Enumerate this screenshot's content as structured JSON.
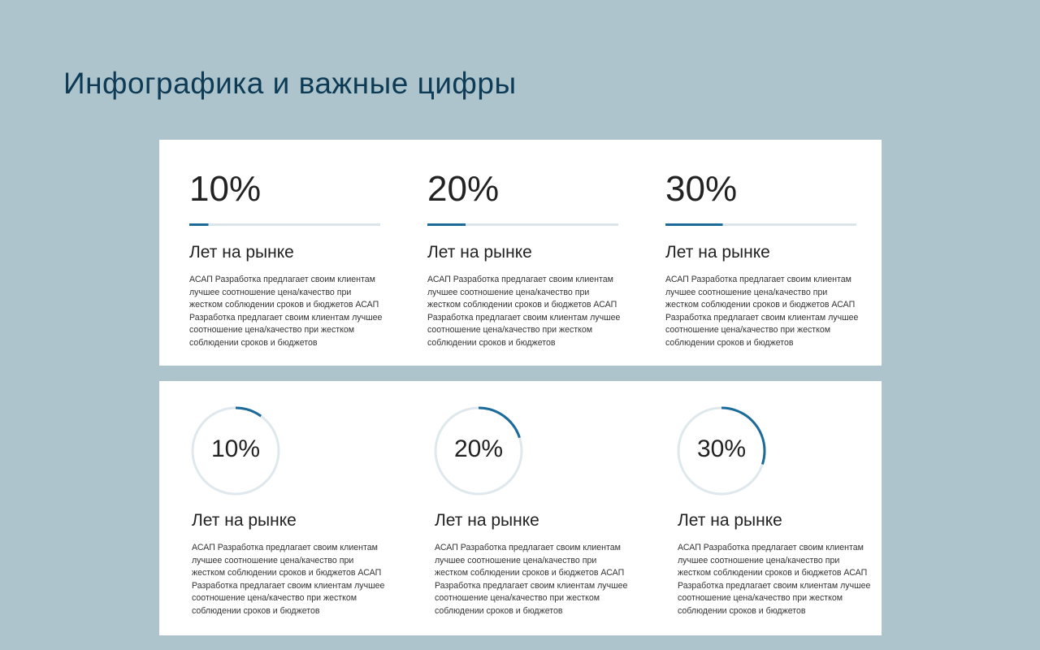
{
  "header": {
    "title": "Инфографика и важные цифры"
  },
  "panels": [
    {
      "style": "bar",
      "items": [
        {
          "value": 10,
          "label": "10%",
          "heading": "Лет на рынке",
          "text": "АСАП Разработка предлагает своим клиентам лучшее соотношение цена/качество при жестком соблюдении сроков и бюджетов АСАП Разработка предлагает своим клиентам лучшее соотношение цена/качество при жестком соблюдении сроков и бюджетов"
        },
        {
          "value": 20,
          "label": "20%",
          "heading": "Лет на рынке",
          "text": "АСАП Разработка предлагает своим клиентам лучшее соотношение цена/качество при жестком соблюдении сроков и бюджетов АСАП Разработка предлагает своим клиентам лучшее соотношение цена/качество при жестком соблюдении сроков и бюджетов"
        },
        {
          "value": 30,
          "label": "30%",
          "heading": "Лет на рынке",
          "text": "АСАП Разработка предлагает своим клиентам лучшее соотношение цена/качество при жестком соблюдении сроков и бюджетов АСАП Разработка предлагает своим клиентам лучшее соотношение цена/качество при жестком соблюдении сроков и бюджетов"
        }
      ]
    },
    {
      "style": "ring",
      "items": [
        {
          "value": 10,
          "label": "10%",
          "heading": "Лет на рынке",
          "text": "АСАП Разработка предлагает своим клиентам лучшее соотношение цена/качество при жестком соблюдении сроков и бюджетов АСАП Разработка предлагает своим клиентам лучшее соотношение цена/качество при жестком соблюдении сроков и бюджетов"
        },
        {
          "value": 20,
          "label": "20%",
          "heading": "Лет на рынке",
          "text": "АСАП Разработка предлагает своим клиентам лучшее соотношение цена/качество при жестком соблюдении сроков и бюджетов АСАП Разработка предлагает своим клиентам лучшее соотношение цена/качество при жестком соблюдении сроков и бюджетов"
        },
        {
          "value": 30,
          "label": "30%",
          "heading": "Лет на рынке",
          "text": "АСАП Разработка предлагает своим клиентам лучшее соотношение цена/качество при жестком соблюдении сроков и бюджетов АСАП Разработка предлагает своим клиентам лучшее соотношение цена/качество при жестком соблюдении сроков и бюджетов"
        }
      ]
    }
  ]
}
